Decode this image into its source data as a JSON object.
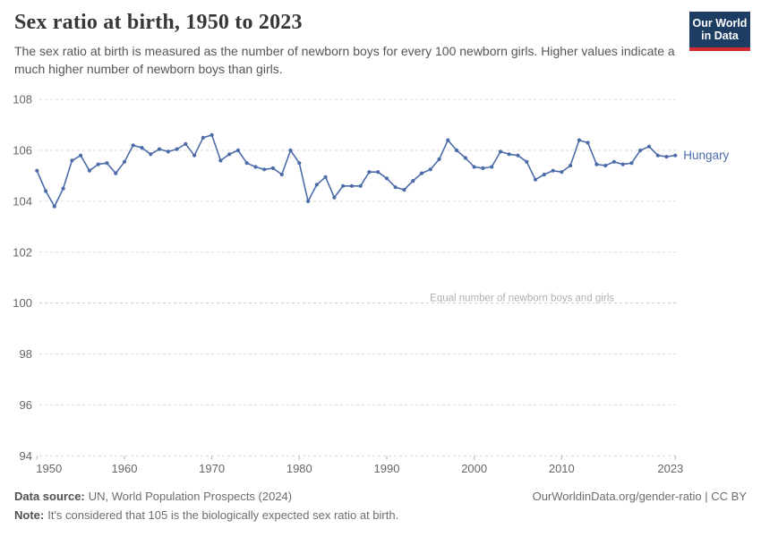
{
  "logo": {
    "line1": "Our World",
    "line2": "in Data"
  },
  "header": {
    "title": "Sex ratio at birth, 1950 to 2023",
    "subtitle": "The sex ratio at birth is measured as the number of newborn boys for every 100 newborn girls. Higher values indicate a much higher number of newborn boys than girls."
  },
  "chart_data": {
    "type": "line",
    "title": "Sex ratio at birth, 1950 to 2023",
    "xlabel": "",
    "ylabel": "",
    "ylim": [
      94,
      108
    ],
    "yticks": [
      94,
      96,
      98,
      100,
      102,
      104,
      106,
      108
    ],
    "xticks": [
      1950,
      1960,
      1970,
      1980,
      1990,
      2000,
      2010,
      2023
    ],
    "grid": true,
    "legend_position": "end-of-line",
    "annotation": {
      "text": "Equal number of newborn boys and girls",
      "y": 100
    },
    "x": [
      1950,
      1951,
      1952,
      1953,
      1954,
      1955,
      1956,
      1957,
      1958,
      1959,
      1960,
      1961,
      1962,
      1963,
      1964,
      1965,
      1966,
      1967,
      1968,
      1969,
      1970,
      1971,
      1972,
      1973,
      1974,
      1975,
      1976,
      1977,
      1978,
      1979,
      1980,
      1981,
      1982,
      1983,
      1984,
      1985,
      1986,
      1987,
      1988,
      1989,
      1990,
      1991,
      1992,
      1993,
      1994,
      1995,
      1996,
      1997,
      1998,
      1999,
      2000,
      2001,
      2002,
      2003,
      2004,
      2005,
      2006,
      2007,
      2008,
      2009,
      2010,
      2011,
      2012,
      2013,
      2014,
      2015,
      2016,
      2017,
      2018,
      2019,
      2020,
      2021,
      2022,
      2023
    ],
    "series": [
      {
        "name": "Hungary",
        "color": "#4C6CA9",
        "values": [
          105.2,
          104.4,
          103.8,
          104.5,
          105.6,
          105.8,
          105.2,
          105.45,
          105.5,
          105.1,
          105.55,
          106.2,
          106.1,
          105.85,
          106.05,
          105.95,
          106.05,
          106.25,
          105.8,
          106.5,
          106.6,
          105.6,
          105.85,
          106.0,
          105.5,
          105.35,
          105.25,
          105.3,
          105.05,
          106.0,
          105.5,
          104.0,
          104.65,
          104.95,
          104.15,
          104.6,
          104.6,
          104.6,
          105.15,
          105.15,
          104.9,
          104.55,
          104.45,
          104.8,
          105.1,
          105.25,
          105.65,
          106.4,
          106.0,
          105.7,
          105.35,
          105.3,
          105.35,
          105.95,
          105.85,
          105.8,
          105.55,
          104.85,
          105.05,
          105.2,
          105.15,
          105.4,
          106.4,
          106.3,
          105.45,
          105.4,
          105.55,
          105.45,
          105.5,
          106.0,
          106.15,
          105.8,
          105.75,
          105.8
        ]
      }
    ]
  },
  "footer": {
    "source_label": "Data source:",
    "source": "UN, World Population Prospects (2024)",
    "url_text": "OurWorldinData.org/gender-ratio | CC BY",
    "note_label": "Note:",
    "note": "It's considered that 105 is the biologically expected sex ratio at birth."
  }
}
